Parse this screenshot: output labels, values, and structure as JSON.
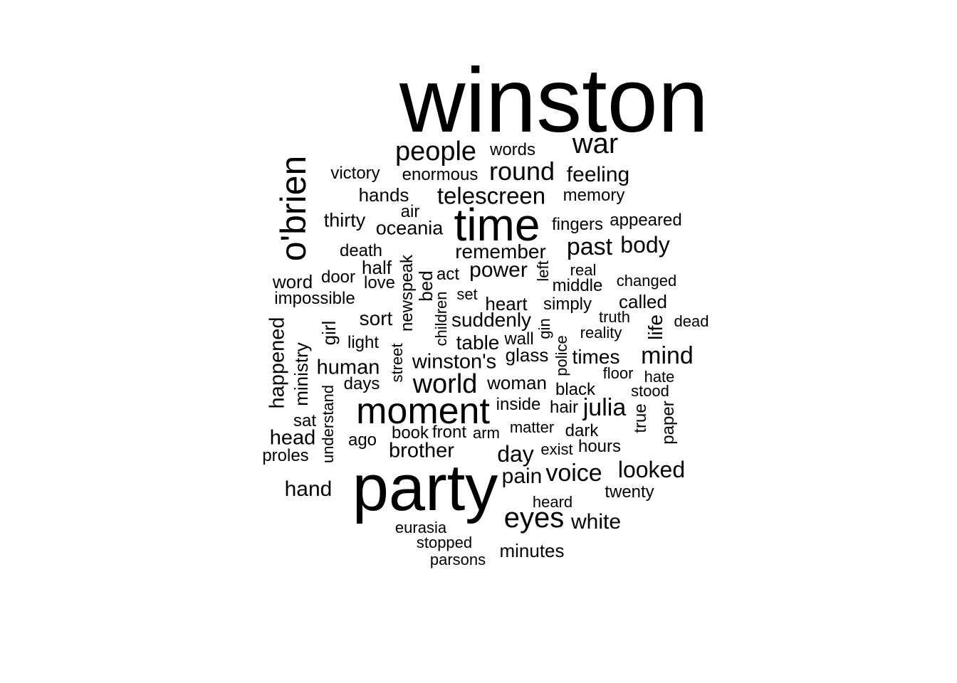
{
  "word_cloud": {
    "text_color": "#000000",
    "background": "#ffffff",
    "words": [
      "winston",
      "party",
      "time",
      "moment",
      "o'brien",
      "war",
      "people",
      "round",
      "telescreen",
      "eyes",
      "world",
      "julia",
      "mind",
      "voice",
      "looked",
      "past",
      "body",
      "remember",
      "power",
      "feeling",
      "day",
      "brother",
      "hand",
      "pain",
      "white",
      "minutes",
      "winston's",
      "human",
      "head",
      "happened",
      "sort",
      "table",
      "suddenly",
      "words",
      "enormous",
      "victory",
      "hands",
      "memory",
      "thirty",
      "oceania",
      "air",
      "fingers",
      "appeared",
      "death",
      "half",
      "word",
      "door",
      "act",
      "love",
      "real",
      "changed",
      "middle",
      "impossible",
      "newspeak",
      "bed",
      "left",
      "set",
      "heart",
      "called",
      "simply",
      "truth",
      "life",
      "dead",
      "girl",
      "light",
      "children",
      "gin",
      "reality",
      "wall",
      "glass",
      "times",
      "ministry",
      "street",
      "police",
      "floor",
      "hate",
      "days",
      "woman",
      "black",
      "stood",
      "sat",
      "inside",
      "hair",
      "true",
      "paper",
      "understand",
      "book",
      "front",
      "arm",
      "matter",
      "dark",
      "ago",
      "exist",
      "hours",
      "proles",
      "twenty",
      "heard",
      "eurasia",
      "stopped",
      "parsons"
    ]
  }
}
